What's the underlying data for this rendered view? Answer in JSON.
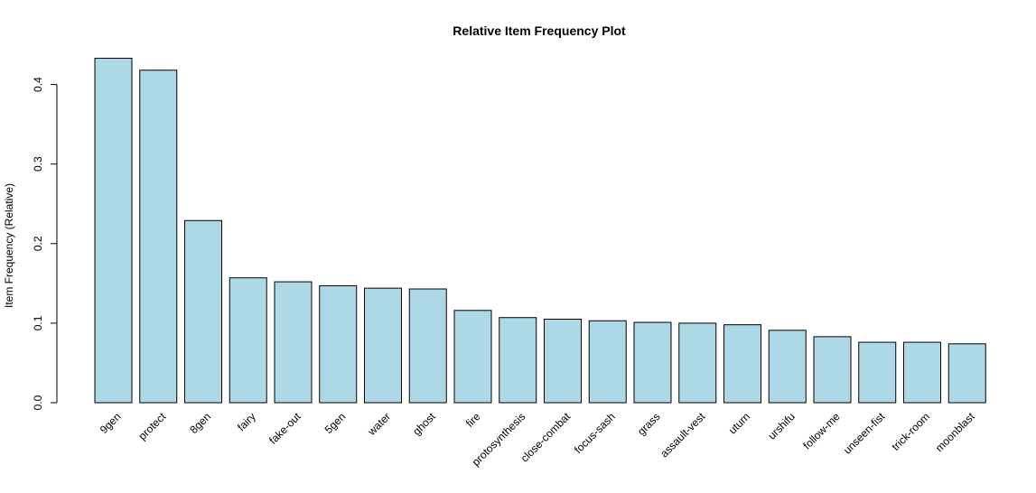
{
  "chart_data": {
    "type": "bar",
    "title": "Relative Item Frequency Plot",
    "xlabel": "",
    "ylabel": "Item Frequency (Relative)",
    "ylim": [
      0,
      0.43
    ],
    "yticks": [
      0.0,
      0.1,
      0.2,
      0.3,
      0.4
    ],
    "ytick_labels": [
      "0.0",
      "0.1",
      "0.2",
      "0.3",
      "0.4"
    ],
    "grid": false,
    "bar_color": "#add8e6",
    "categories": [
      "9gen",
      "protect",
      "8gen",
      "fairy",
      "fake-out",
      "5gen",
      "water",
      "ghost",
      "fire",
      "protosynthesis",
      "close-combat",
      "focus-sash",
      "grass",
      "assault-vest",
      "uturn",
      "urshifu",
      "follow-me",
      "unseen-fist",
      "trick-room",
      "moonblast"
    ],
    "values": [
      0.433,
      0.418,
      0.229,
      0.157,
      0.152,
      0.147,
      0.144,
      0.143,
      0.116,
      0.107,
      0.105,
      0.103,
      0.101,
      0.1,
      0.098,
      0.091,
      0.083,
      0.076,
      0.076,
      0.074
    ]
  }
}
